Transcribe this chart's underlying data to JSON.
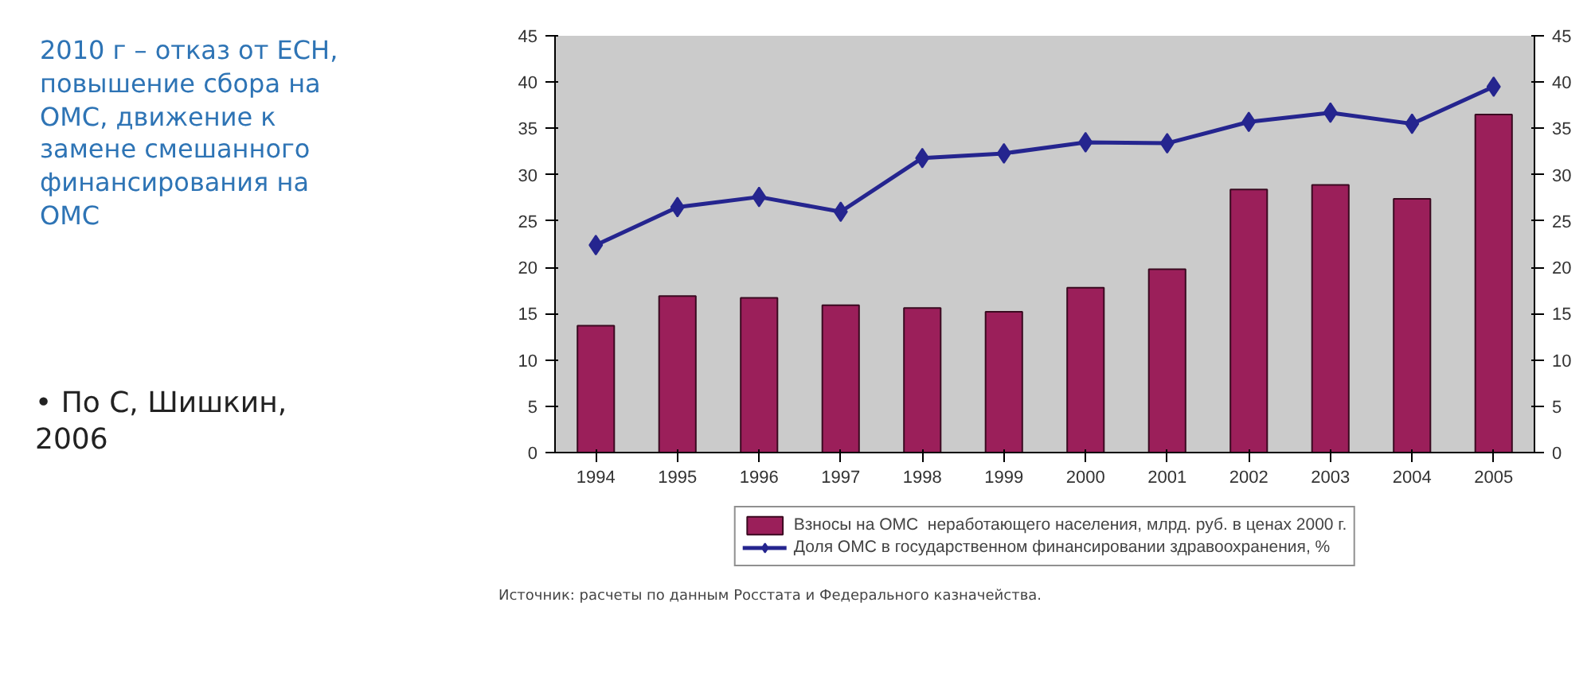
{
  "chart_data": {
    "type": "bar",
    "categories": [
      "1994",
      "1995",
      "1996",
      "1997",
      "1998",
      "1999",
      "2000",
      "2001",
      "2002",
      "2003",
      "2004",
      "2005"
    ],
    "series": [
      {
        "name": "Взносы на ОМС  неработающего населения, млрд. руб. в ценах 2000 г.",
        "color": "#9b1f5a",
        "values": [
          13.7,
          16.9,
          16.7,
          15.9,
          15.6,
          15.2,
          17.8,
          19.8,
          28.4,
          28.9,
          27.4,
          36.5
        ]
      },
      {
        "name": "Доля ОМС в государственном финансировании здравоохранения, %",
        "type": "line",
        "marker": "diamond",
        "line_style": "solid",
        "color": "#25258f",
        "values": [
          22.4,
          26.5,
          27.6,
          26.0,
          31.8,
          32.3,
          33.5,
          33.4,
          35.7,
          36.7,
          35.5,
          39.5
        ]
      }
    ],
    "ylim": [
      0,
      45
    ],
    "yticks": [
      0,
      5,
      10,
      15,
      20,
      25,
      30,
      35,
      40,
      45
    ],
    "y2lim": [
      0,
      45
    ],
    "y2ticks": [
      0,
      5,
      10,
      15,
      20,
      25,
      30,
      35,
      40,
      45
    ],
    "grid": false,
    "legend": "bottom",
    "annotations": [
      "2010 г – отказ от ЕСН,\nповышение сбора на\nОМС, движение к\nзамене смешанного\nфинансирования на\nОМС",
      "• По С, Шишкин,\n   2006",
      "Источник: расчеты по данным Росстата и Федерального казначейства."
    ]
  }
}
